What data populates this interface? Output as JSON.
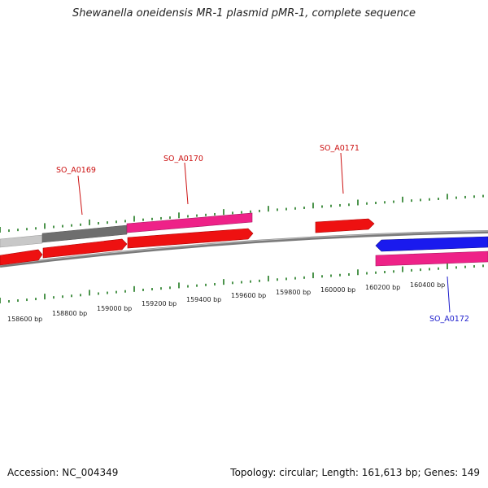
{
  "title": "Shewanella oneidensis MR-1 plasmid pMR-1, complete sequence",
  "footer": {
    "accession": "Accession: NC_004349",
    "summary": "Topology: circular; Length: 161,613 bp; Genes: 149"
  },
  "colors": {
    "forward_cds": "#ee1111",
    "reverse_cds": "#1a1aee",
    "pink_feature": "#ee2288",
    "backbone": "#8a8a8a",
    "ticks": "#1f7a1f",
    "forward_label": "#cc1111",
    "reverse_label": "#1a1acc"
  },
  "scale_labels": [
    {
      "text": "158600 bp"
    },
    {
      "text": "158800 bp"
    },
    {
      "text": "159000 bp"
    },
    {
      "text": "159200 bp"
    },
    {
      "text": "159400 bp"
    },
    {
      "text": "159600 bp"
    },
    {
      "text": "159800 bp"
    },
    {
      "text": "160000 bp"
    },
    {
      "text": "160200 bp"
    },
    {
      "text": "160400 bp"
    }
  ],
  "gene_labels": [
    {
      "text": "SO_A0169",
      "strand": "forward"
    },
    {
      "text": "SO_A0170",
      "strand": "forward"
    },
    {
      "text": "SO_A0171",
      "strand": "forward"
    },
    {
      "text": "SO_A0172",
      "strand": "reverse"
    }
  ]
}
